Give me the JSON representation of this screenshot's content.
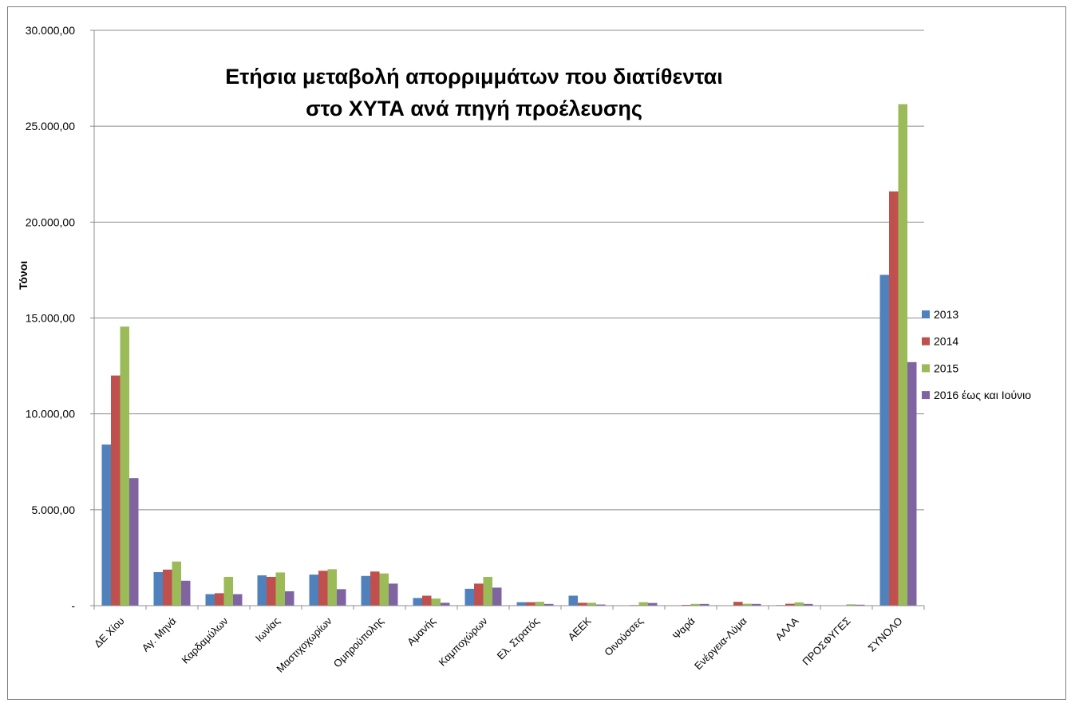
{
  "chart_data": {
    "type": "bar",
    "title_lines": [
      "Ετήσια μεταβολή απορριμμάτων που διατίθενται",
      "στο ΧΥΤΑ  ανά πηγή προέλευσης"
    ],
    "xlabel": "",
    "ylabel": "Τόνοι",
    "ylim": [
      0,
      30000
    ],
    "yticks": [
      0,
      5000,
      10000,
      15000,
      20000,
      25000,
      30000
    ],
    "ytick_labels": [
      "-",
      "5.000,00",
      "10.000,00",
      "15.000,00",
      "20.000,00",
      "25.000,00",
      "30.000,00"
    ],
    "grid": true,
    "legend_position": "right",
    "categories": [
      "ΔΕ Χίου",
      "Αγ. Μηνά",
      "Καρδαμύλων",
      "Ιωνίας",
      "Μαστιχοχωρίων",
      "Ομηρούπολης",
      "Αμανής",
      "Καμποχώρων",
      "Ελ. Στρατός",
      "ΑΕΕΚ",
      "Οινούσσες",
      "Ψαρά",
      "Ενέργεια-Λύμα",
      "ΑΛΛΑ",
      "ΠΡΟΣΦΥΓΕΣ",
      "ΣΥΝΟΛΟ"
    ],
    "series": [
      {
        "name": "2013",
        "color": "#4f81bd",
        "values": [
          8400,
          1750,
          600,
          1580,
          1620,
          1550,
          400,
          880,
          180,
          520,
          20,
          10,
          20,
          30,
          0,
          17250
        ]
      },
      {
        "name": "2014",
        "color": "#c0504d",
        "values": [
          12000,
          1880,
          650,
          1500,
          1820,
          1780,
          520,
          1150,
          180,
          150,
          30,
          40,
          200,
          100,
          20,
          21600
        ]
      },
      {
        "name": "2015",
        "color": "#9bbb59",
        "values": [
          14550,
          2300,
          1500,
          1730,
          1900,
          1680,
          370,
          1500,
          200,
          150,
          180,
          90,
          100,
          170,
          70,
          26150
        ]
      },
      {
        "name": "2016 έως και Ιούνιο",
        "color": "#8064a2",
        "values": [
          6650,
          1300,
          600,
          750,
          860,
          1150,
          150,
          940,
          90,
          60,
          140,
          90,
          90,
          90,
          50,
          12700
        ]
      }
    ]
  }
}
